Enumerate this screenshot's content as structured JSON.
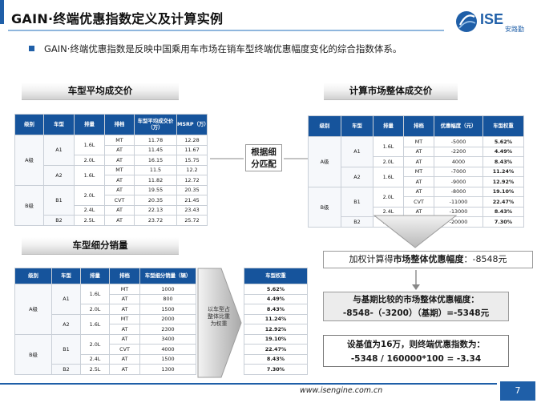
{
  "header": {
    "title": "GAIN·终端优惠指数定义及计算实例",
    "logo_text": "ISE",
    "logo_sub": "安路勤"
  },
  "bullet": "GAIN·终端优惠指数是反映中国乘用车市场在销车型终端优惠幅度变化的综合指数体系。",
  "sections": {
    "avg_price": "车型平均成交价",
    "market_price": "计算市场整体成交价",
    "sales": "车型细分销量"
  },
  "match_box": [
    "根据细",
    "分匹配"
  ],
  "arrow_label": "以车型占整体比重为权重",
  "table1": {
    "headers": [
      "级别",
      "车型",
      "排量",
      "排档",
      "车型平均成交价（万）",
      "MSRP（万）"
    ],
    "rows": [
      [
        "MT",
        "11.78",
        "12.28"
      ],
      [
        "AT",
        "11.45",
        "11.67"
      ],
      [
        "AT",
        "16.15",
        "15.75"
      ],
      [
        "MT",
        "11.5",
        "12.2"
      ],
      [
        "AT",
        "11.82",
        "12.72"
      ],
      [
        "AT",
        "19.55",
        "20.35"
      ],
      [
        "CVT",
        "20.35",
        "21.45"
      ],
      [
        "AT",
        "22.13",
        "23.43"
      ],
      [
        "AT",
        "23.72",
        "25.72"
      ]
    ]
  },
  "table2": {
    "headers": [
      "级别",
      "车型",
      "排量",
      "排档",
      "优惠幅度（元）",
      "车型权重"
    ],
    "rows": [
      [
        "MT",
        "-5000",
        "5.62%"
      ],
      [
        "AT",
        "-2200",
        "4.49%"
      ],
      [
        "AT",
        "4000",
        "8.43%"
      ],
      [
        "MT",
        "-7000",
        "11.24%"
      ],
      [
        "AT",
        "-9000",
        "12.92%"
      ],
      [
        "AT",
        "-8000",
        "19.10%"
      ],
      [
        "CVT",
        "-11000",
        "22.47%"
      ],
      [
        "AT",
        "-13000",
        "8.43%"
      ],
      [
        "AT",
        "-20000",
        "7.30%"
      ]
    ]
  },
  "table3": {
    "headers": [
      "级别",
      "车型",
      "排量",
      "排档",
      "车型细分销量（辆）"
    ],
    "rows": [
      [
        "MT",
        "1000"
      ],
      [
        "AT",
        "800"
      ],
      [
        "AT",
        "1500"
      ],
      [
        "MT",
        "2000"
      ],
      [
        "AT",
        "2300"
      ],
      [
        "AT",
        "3400"
      ],
      [
        "CVT",
        "4000"
      ],
      [
        "AT",
        "1500"
      ],
      [
        "AT",
        "1300"
      ]
    ]
  },
  "table4": {
    "header": "车型权重",
    "values": [
      "5.62%",
      "4.49%",
      "8.43%",
      "11.24%",
      "12.92%",
      "19.10%",
      "22.47%",
      "8.43%",
      "7.30%"
    ]
  },
  "groups": {
    "classA": "A级",
    "classB": "B级",
    "a1": "A1",
    "a2": "A2",
    "b1": "B1",
    "b2": "B2",
    "d16": "1.6L",
    "d20": "2.0L",
    "d24": "2.4L",
    "d25": "2.5L"
  },
  "results": {
    "r1_prefix": "加权计算得",
    "r1_bold": "市场整体优惠幅度",
    "r1_suffix": "：-8548元",
    "r2_line1": "与基期比较的市场整体优惠幅度：",
    "r2_line2": "-8548-（-3200）（基期）=-5348元",
    "r3_line1": "设基值为16万，则终端优惠指数为：",
    "r3_line2": "-5348 / 160000*100 = -3.34"
  },
  "footer": {
    "url": "www.isengine.com.cn",
    "page": "7"
  },
  "colors": {
    "brand": "#1f5fa8",
    "table_header": "#16549c"
  }
}
